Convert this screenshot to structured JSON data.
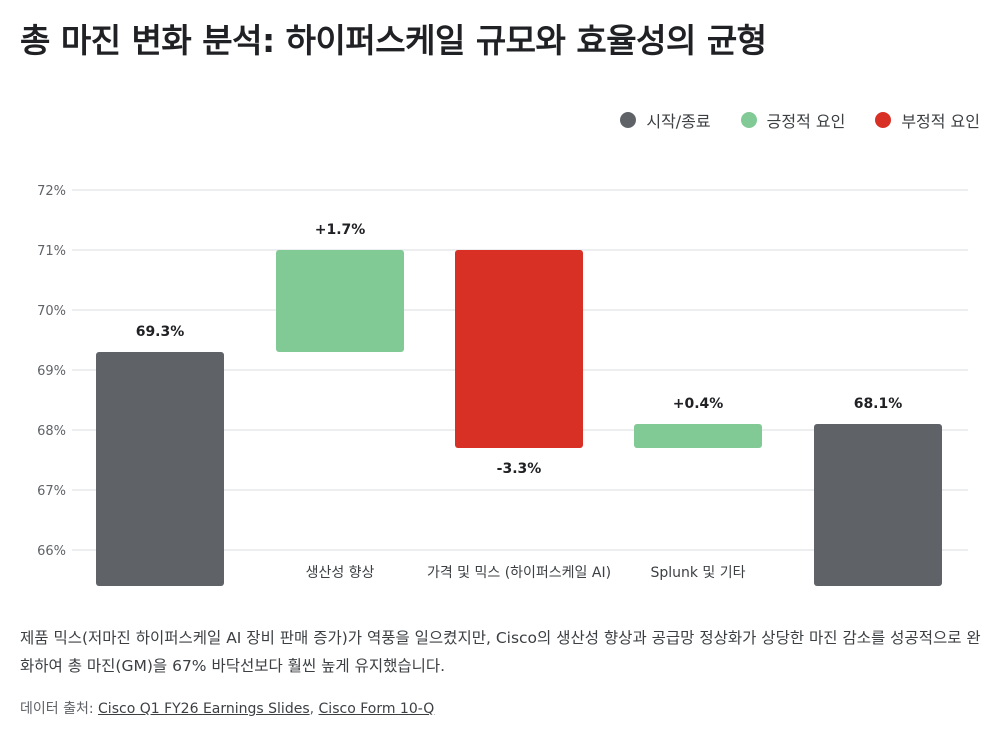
{
  "title": "총 마진 변화 분석: 하이퍼스케일 규모와 효율성의 균형",
  "legend": [
    {
      "label": "시작/종료",
      "color": "#5f6368"
    },
    {
      "label": "긍정적 요인",
      "color": "#81c995"
    },
    {
      "label": "부정적 요인",
      "color": "#d93025"
    }
  ],
  "chart_data": {
    "type": "bar",
    "subtype": "waterfall",
    "title": "",
    "xlabel": "",
    "ylabel": "",
    "ylim": [
      65.4,
      72
    ],
    "y_ticks": [
      "66%",
      "67%",
      "68%",
      "69%",
      "70%",
      "71%",
      "72%"
    ],
    "y_tick_values": [
      66,
      67,
      68,
      69,
      70,
      71,
      72
    ],
    "grid": true,
    "legend_position": "top-right",
    "categories": [
      "",
      "생산성 향상",
      "가격 및 믹스 (하이퍼스케일 AI)",
      "Splunk 및 기타",
      ""
    ],
    "bars": [
      {
        "kind": "total",
        "start": 65.4,
        "end": 69.3,
        "label": "69.3%",
        "color": "#5f6368"
      },
      {
        "kind": "positive",
        "start": 69.3,
        "end": 71.0,
        "label": "+1.7%",
        "color": "#81c995"
      },
      {
        "kind": "negative",
        "start": 71.0,
        "end": 67.7,
        "label": "-3.3%",
        "color": "#d93025"
      },
      {
        "kind": "positive",
        "start": 67.7,
        "end": 68.1,
        "label": "+0.4%",
        "color": "#81c995"
      },
      {
        "kind": "total",
        "start": 65.4,
        "end": 68.1,
        "label": "68.1%",
        "color": "#5f6368"
      }
    ]
  },
  "description": "제품 믹스(저마진 하이퍼스케일 AI 장비 판매 증가)가 역풍을 일으켰지만, Cisco의 생산성 향상과 공급망 정상화가 상당한 마진 감소를 성공적으로 완화하여 총 마진(GM)을 67% 바닥선보다 훨씬 높게 유지했습니다.",
  "source": {
    "prefix": "데이터 출처:",
    "links": [
      "Cisco Q1 FY26 Earnings Slides",
      "Cisco Form 10-Q"
    ],
    "separator": ","
  }
}
